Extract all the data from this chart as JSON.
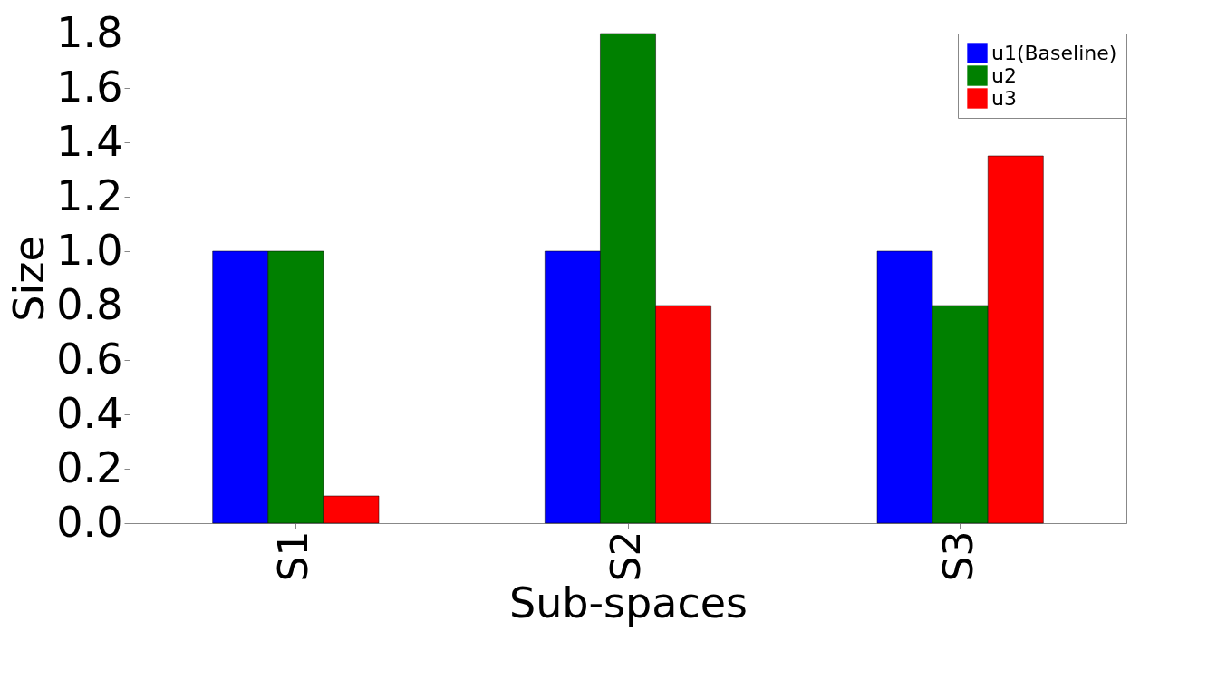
{
  "chart_data": {
    "type": "bar",
    "xlabel": "Sub-spaces",
    "ylabel": "Size",
    "categories": [
      "S1",
      "S2",
      "S3"
    ],
    "series": [
      {
        "name": "u1(Baseline)",
        "color": "#0000ff",
        "values": [
          1.0,
          1.0,
          1.0
        ]
      },
      {
        "name": "u2",
        "color": "#008000",
        "values": [
          1.0,
          1.8,
          0.8
        ]
      },
      {
        "name": "u3",
        "color": "#ff0000",
        "values": [
          0.1,
          0.8,
          1.35
        ]
      }
    ],
    "ylim": [
      0,
      1.8
    ],
    "yticks": [
      {
        "value": 0,
        "label": "0.0"
      },
      {
        "value": 0.2,
        "label": "0.2"
      },
      {
        "value": 0.4,
        "label": "0.4"
      },
      {
        "value": 0.6,
        "label": "0.6"
      },
      {
        "value": 0.8,
        "label": "0.8"
      },
      {
        "value": 1.0,
        "label": "1.0"
      },
      {
        "value": 1.2,
        "label": "1.2"
      },
      {
        "value": 1.4,
        "label": "1.4"
      },
      {
        "value": 1.6,
        "label": "1.6"
      },
      {
        "value": 1.8,
        "label": "1.8"
      }
    ],
    "legend": "top right",
    "grid": false
  }
}
